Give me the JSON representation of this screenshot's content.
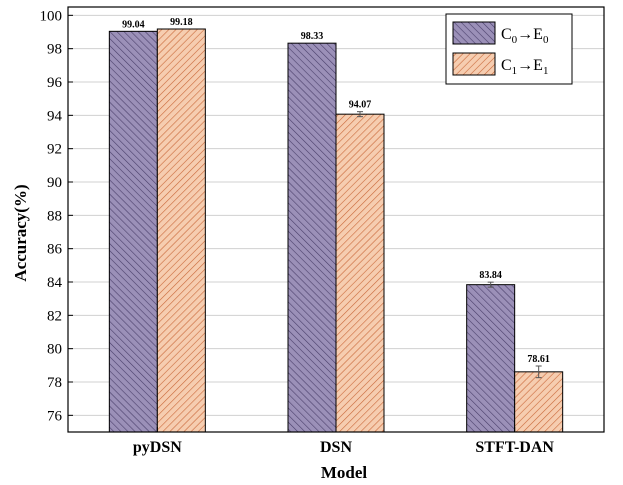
{
  "chart_data": {
    "type": "bar",
    "categories": [
      "pyDSN",
      "DSN",
      "STFT-DAN"
    ],
    "series": [
      {
        "name": "C0→E0",
        "name_base": "C",
        "name_sub1": "0",
        "name_arrow": "→",
        "name_base2": "E",
        "name_sub2": "0",
        "values": [
          99.04,
          98.33,
          83.84
        ],
        "labels": [
          "99.04",
          "98.33",
          "83.84"
        ],
        "color": "#9b90b8",
        "hatch": "#4a3f6b"
      },
      {
        "name": "C1→E1",
        "name_base": "C",
        "name_sub1": "1",
        "name_arrow": "→",
        "name_base2": "E",
        "name_sub2": "1",
        "values": [
          99.18,
          94.07,
          78.61
        ],
        "labels": [
          "99.18",
          "94.07",
          "78.61"
        ],
        "color": "#f6cdb0",
        "hatch": "#c9683a"
      }
    ],
    "error": [
      [
        0,
        0,
        0.15
      ],
      [
        0,
        0.15,
        0.35
      ]
    ],
    "xlabel": "Model",
    "ylabel": "Accuracy(%)",
    "ylim": [
      75,
      100.5
    ],
    "yticks": [
      "76",
      "78",
      "80",
      "82",
      "84",
      "86",
      "88",
      "90",
      "92",
      "94",
      "96",
      "98",
      "100"
    ],
    "grid": true,
    "legend_position": "top-right"
  }
}
